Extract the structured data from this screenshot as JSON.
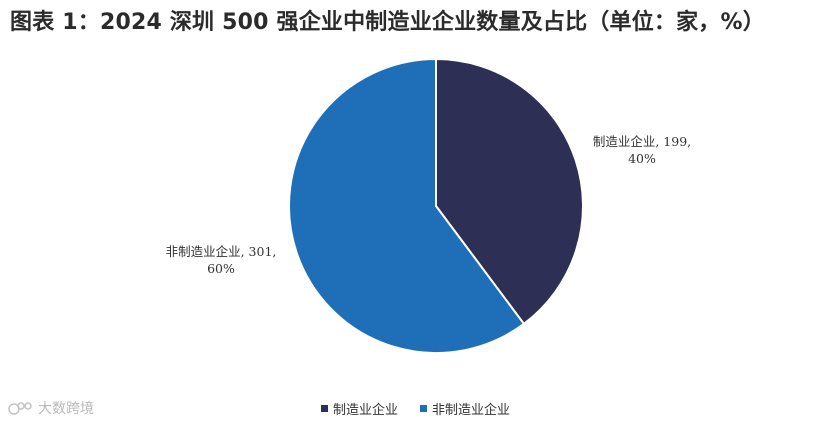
{
  "title": "图表 1：2024 深圳 500 强企业中制造业企业数量及占比（单位：家，%）",
  "watermark": {
    "text": "大数跨境",
    "logo": "logo-icon"
  },
  "chart_data": {
    "type": "pie",
    "start_angle_deg": 0,
    "direction": "clockwise",
    "slices": [
      {
        "name": "制造业企业",
        "value": 199,
        "percent": "40%",
        "label_line1": "制造业企业, 199,",
        "label_line2": "40%",
        "color": "#2e2f55"
      },
      {
        "name": "非制造业企业",
        "value": 301,
        "percent": "60%",
        "label_line1": "非制造业企业, 301,",
        "label_line2": "60%",
        "color": "#1f6fb8"
      }
    ],
    "legend": {
      "position": "bottom"
    }
  }
}
